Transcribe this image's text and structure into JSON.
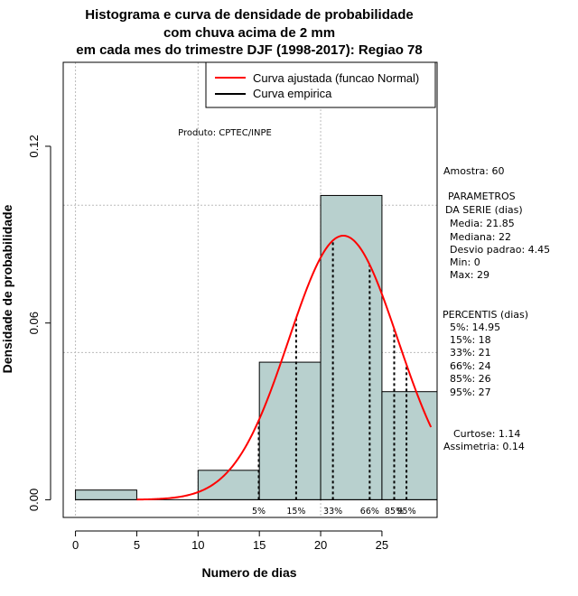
{
  "chart_data": {
    "type": "bar",
    "title_lines": [
      "Histograma e curva de densidade de probabilidade",
      "com chuva acima de 2 mm",
      "em cada mes do trimestre DJF (1998-2017): Regiao 78"
    ],
    "xlabel": "Numero de dias",
    "ylabel": "Densidade de probabilidade",
    "xlim": [
      -1,
      29.5
    ],
    "ylim": [
      -0.006,
      0.1485
    ],
    "x_ticks": [
      0,
      5,
      10,
      15,
      20,
      25
    ],
    "y_ticks": [
      0.0,
      0.06,
      0.12
    ],
    "y_tick_labels": [
      "0.00",
      "0.06",
      "0.12"
    ],
    "grid_y": [
      0.05,
      0.1
    ],
    "grid_x": [
      0,
      10,
      20
    ],
    "bins": [
      {
        "from": 0,
        "to": 5,
        "density": 0.0033
      },
      {
        "from": 5,
        "to": 10,
        "density": 0.0
      },
      {
        "from": 10,
        "to": 15,
        "density": 0.01
      },
      {
        "from": 15,
        "to": 20,
        "density": 0.0467
      },
      {
        "from": 20,
        "to": 25,
        "density": 0.1033
      },
      {
        "from": 25,
        "to": 30,
        "density": 0.0367
      }
    ],
    "bar_color": "#b8d0ce",
    "curve": {
      "name": "Curva ajustada (funcao Normal)",
      "mean": 21.85,
      "sd": 4.45,
      "x_from": 5,
      "x_to": 29,
      "color": "#ff0000"
    },
    "legend": [
      {
        "label": "Curva ajustada (funcao Normal)",
        "color": "#ff0000"
      },
      {
        "label": "Curva empirica",
        "color": "#000000"
      }
    ],
    "percentile_lines": [
      {
        "label": "5%",
        "x": 14.95
      },
      {
        "label": "15%",
        "x": 18
      },
      {
        "label": "33%",
        "x": 21
      },
      {
        "label": "66%",
        "x": 24
      },
      {
        "label": "85%",
        "x": 26
      },
      {
        "label": "95%",
        "x": 27
      }
    ],
    "product_label": "Produto: CPTEC/INPE"
  },
  "side_panel": {
    "amostra": "Amostra: 60",
    "params_title_1": "PARAMETROS",
    "params_title_2": "DA SERIE (dias)",
    "media": "Media: 21.85",
    "mediana": "Mediana: 22",
    "desvio": "Desvio padrao: 4.45",
    "min": "Min: 0",
    "max": "Max: 29",
    "percentis_title": "PERCENTIS (dias)",
    "p5": "5%: 14.95",
    "p15": "15%: 18",
    "p33": "33%: 21",
    "p66": "66%: 24",
    "p85": "85%: 26",
    "p95": "95%: 27",
    "curtose": "Curtose: 1.14",
    "assimetria": "Assimetria: 0.14"
  }
}
